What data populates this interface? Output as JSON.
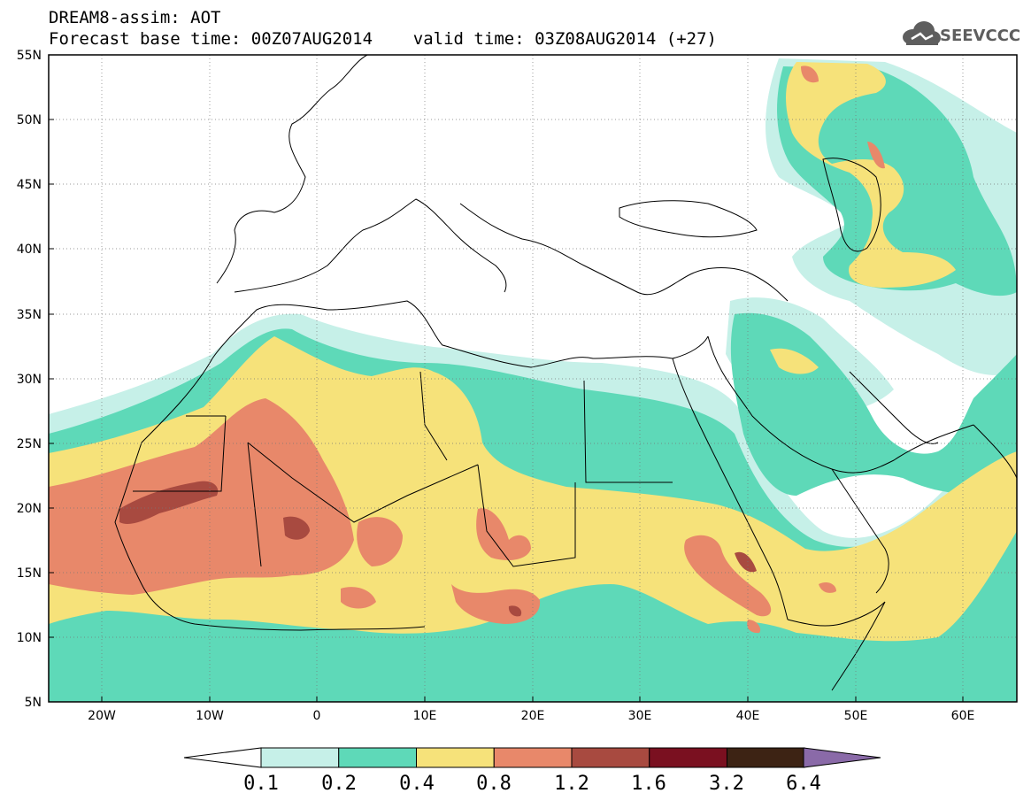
{
  "header": {
    "line1": "DREAM8-assim: AOT",
    "line2": "Forecast base time: 00Z07AUG2014    valid time: 03Z08AUG2014 (+27)"
  },
  "logo": {
    "text": "SEEVCCC",
    "icon": "cloud-icon"
  },
  "map": {
    "projection": "lat-lon",
    "lon_range": [
      -25,
      65
    ],
    "lat_range": [
      5,
      55
    ],
    "x_ticks": [
      "20W",
      "10W",
      "0",
      "10E",
      "20E",
      "30E",
      "40E",
      "50E",
      "60E"
    ],
    "y_ticks": [
      "55N",
      "50N",
      "45N",
      "40N",
      "35N",
      "30N",
      "25N",
      "20N",
      "15N",
      "10N",
      "5N"
    ],
    "grid": "dotted"
  },
  "chart_data": {
    "type": "heatmap",
    "variable": "AOT",
    "levels": [
      "0.1",
      "0.2",
      "0.4",
      "0.8",
      "1.2",
      "1.6",
      "3.2",
      "6.4"
    ],
    "colors": [
      "#c6f0e8",
      "#5ed9b8",
      "#f6e27a",
      "#e8886a",
      "#a84a40",
      "#7a1020",
      "#3d2314",
      "#8a6aa8"
    ],
    "colorbar_under_color": "#ffffff",
    "colorbar_over_color": "#8a6aa8"
  }
}
